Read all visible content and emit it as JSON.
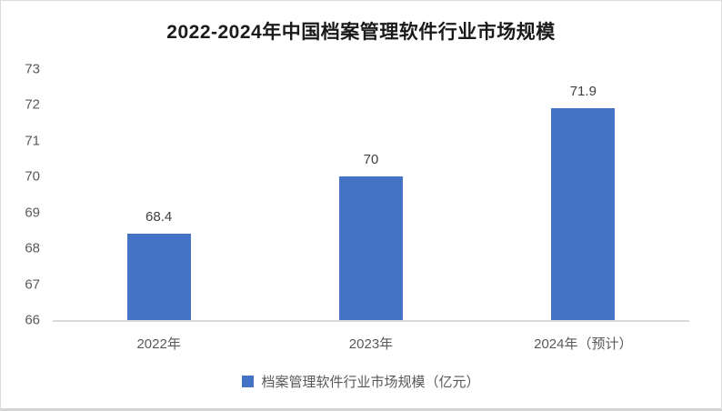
{
  "title": "2022-2024年中国档案管理软件行业市场规模",
  "chart_data": {
    "type": "bar",
    "title": "2022-2024年中国档案管理软件行业市场规模",
    "categories": [
      "2022年",
      "2023年",
      "2024年（预计）"
    ],
    "values": [
      68.4,
      70,
      71.9
    ],
    "value_labels": [
      "68.4",
      "70",
      "71.9"
    ],
    "xlabel": "",
    "ylabel": "",
    "ylim": [
      66,
      73
    ],
    "yticks": [
      66,
      67,
      68,
      69,
      70,
      71,
      72,
      73
    ],
    "grid": false,
    "bar_color": "#4472C4",
    "legend": {
      "position": "bottom",
      "items": [
        {
          "label": "档案管理软件行业市场规模（亿元）",
          "color": "#4472C4"
        }
      ]
    }
  },
  "colors": {
    "bar": "#4472C4",
    "axis_line": "#d9d9d9",
    "tick_text": "#595959",
    "value_text": "#404040",
    "title_text": "#1a1a1a",
    "background": "#ffffff"
  }
}
